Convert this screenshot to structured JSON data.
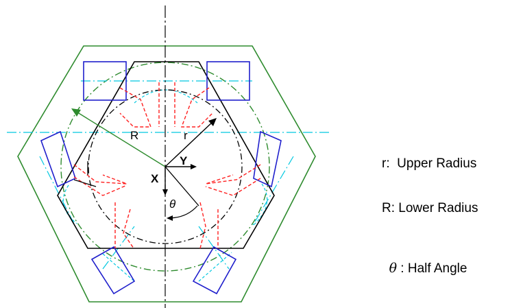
{
  "diagram": {
    "labels": {
      "R": "R",
      "r": "r",
      "X": "X",
      "Y": "Y",
      "theta": "θ"
    },
    "colors": {
      "outer_hexagon": "#2e8b2e",
      "platform": "#1f1fcc",
      "hidden_lines": "#ff2020",
      "centerline": "#00c8e0",
      "body": "#000000"
    }
  },
  "legend": {
    "upper_radius": "r:  Upper Radius",
    "lower_radius": "R: Lower Radius",
    "half_angle_symbol": "θ",
    "half_angle_text": " : Half Angle"
  }
}
